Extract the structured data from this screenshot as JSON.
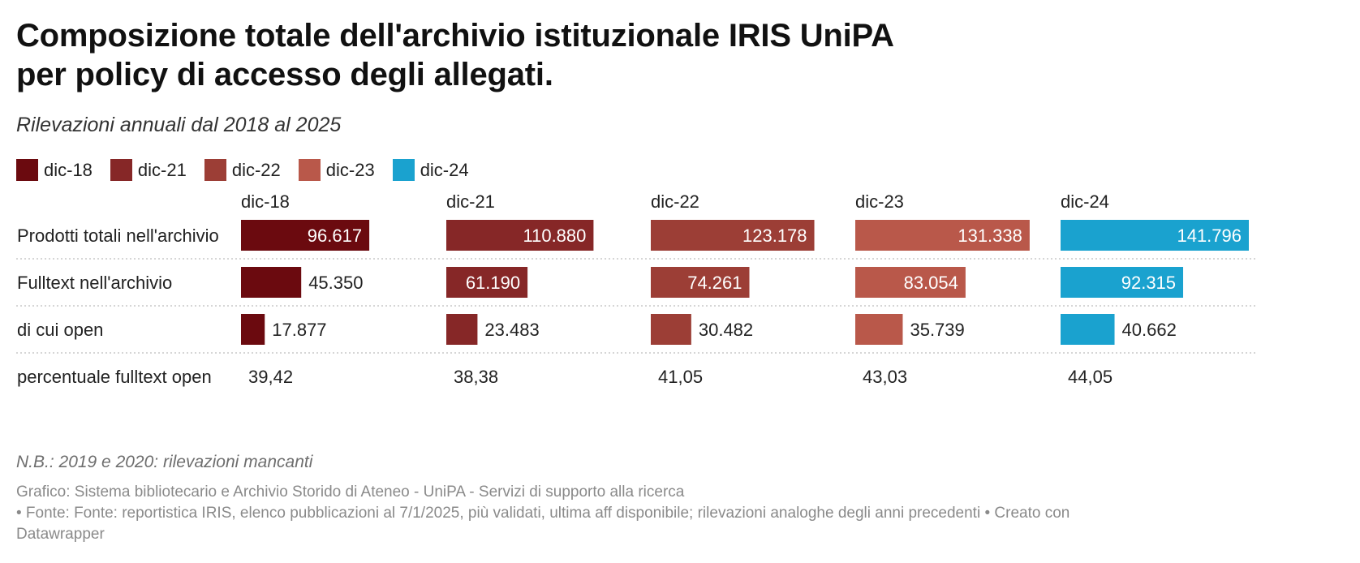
{
  "title_line1": "Composizione totale dell'archivio istituzionale IRIS UniPA",
  "title_line2": "per policy di accesso degli allegati.",
  "subtitle": "Rilevazioni annuali dal 2018 al 2025",
  "note": "N.B.: 2019 e 2020: rilevazioni mancanti",
  "footer": {
    "line1": "Grafico: Sistema bibliotecario e Archivio Storido di Ateneo - UniPA - Servizi di supporto alla ricerca",
    "line2": "• Fonte: Fonte: reportistica IRIS, elenco pubblicazioni al 7/1/2025, più validati, ultima aff disponibile; rilevazioni analoghe degli anni precedenti  • Creato con",
    "line3": "Datawrapper"
  },
  "chart_data": {
    "type": "bar",
    "columns": [
      "dic-18",
      "dic-21",
      "dic-22",
      "dic-23",
      "dic-24"
    ],
    "colors": [
      "#6b0a0f",
      "#862727",
      "#9c3e36",
      "#b9584a",
      "#1aa2cf"
    ],
    "rows": [
      {
        "label": "Prodotti totali nell'archivio",
        "values": [
          96617,
          110880,
          123178,
          131338,
          141796
        ],
        "display": [
          "96.617",
          "110.880",
          "123.178",
          "131.338",
          "141.796"
        ]
      },
      {
        "label": "Fulltext nell'archivio",
        "values": [
          45350,
          61190,
          74261,
          83054,
          92315
        ],
        "display": [
          "45.350",
          "61.190",
          "74.261",
          "83.054",
          "92.315"
        ]
      },
      {
        "label": "di cui open",
        "values": [
          17877,
          23483,
          30482,
          35739,
          40662
        ],
        "display": [
          "17.877",
          "23.483",
          "30.482",
          "35.739",
          "40.662"
        ]
      },
      {
        "label": "percentuale fulltext open",
        "values": [
          39.42,
          38.38,
          41.05,
          43.03,
          44.05
        ],
        "display": [
          "39,42",
          "38,38",
          "41,05",
          "43,03",
          "44,05"
        ],
        "text_only": true
      }
    ]
  }
}
